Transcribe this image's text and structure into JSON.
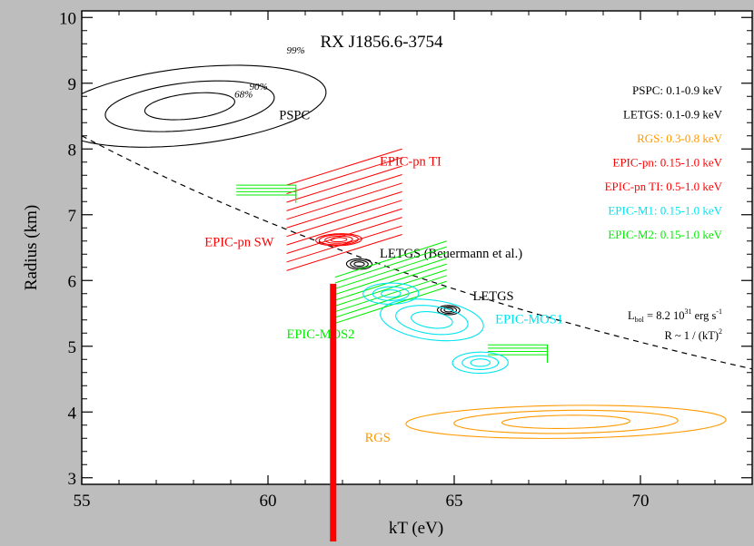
{
  "chart_data": {
    "type": "scatter",
    "title": "RX J1856.6-3754",
    "xlabel": "kT (eV)",
    "ylabel": "Radius (km)",
    "xlim": [
      55,
      73
    ],
    "ylim": [
      2.9,
      10.1
    ],
    "x_ticks": [
      55,
      60,
      65,
      70
    ],
    "y_ticks": [
      3,
      4,
      5,
      6,
      7,
      8,
      9,
      10
    ],
    "x_tick_labels": [
      "55",
      "60",
      "65",
      "70"
    ],
    "y_tick_labels": [
      "3",
      "4",
      "5",
      "6",
      "7",
      "8",
      "9",
      "10"
    ],
    "grid": false,
    "legend_position": "top-right",
    "legend": [
      {
        "label": "PSPC: 0.1-0.9 keV",
        "color": "#000000"
      },
      {
        "label": "LETGS: 0.1-0.9 keV",
        "color": "#000000"
      },
      {
        "label": "RGS: 0.3-0.8 keV",
        "color": "#ff9900"
      },
      {
        "label": "EPIC-pn: 0.15-1.0 keV",
        "color": "#ff0000"
      },
      {
        "label": "EPIC-pn TI: 0.5-1.0 keV",
        "color": "#ff0000"
      },
      {
        "label": "EPIC-M1: 0.15-1.0 keV",
        "color": "#00e5ee"
      },
      {
        "label": "EPIC-M2: 0.15-1.0 keV",
        "color": "#00ee00"
      }
    ],
    "relation": {
      "label_lbol": "L",
      "label_lbol_sub": "bol",
      "label_lbol_rest": " = 8.2 10",
      "label_lbol_exp": "31",
      "label_lbol_unit": " erg s",
      "label_lbol_unit_exp": "-1",
      "label_r": "R ~ 1 / (kT)",
      "label_r_exp": "2",
      "anchor": {
        "x": 55,
        "y": 8.2
      },
      "x_range": [
        55,
        73
      ],
      "style": "dashed",
      "color": "#000000"
    },
    "marker": {
      "x": 61.75,
      "y_top": 5.95,
      "color": "#ff0000"
    },
    "confidence_levels": [
      "68%",
      "90%",
      "99%"
    ],
    "contour_groups": [
      {
        "label": "PSPC",
        "color": "#000000",
        "label_x": 60.3,
        "label_y": 8.45,
        "center": [
          57.9,
          8.65
        ],
        "semi_axes": [
          3.9,
          0.55
        ],
        "angle_deg": 27,
        "rings": [
          0.33,
          0.62,
          1.0
        ],
        "ring_labels": [
          "68%",
          "90%",
          "99%"
        ]
      },
      {
        "label": "EPIC-pn TI",
        "color": "#ff0000",
        "label_x": 63.0,
        "label_y": 7.75,
        "hatch": {
          "x": [
            60.5,
            63.6
          ],
          "y": [
            6.15,
            7.45
          ],
          "count": 11
        }
      },
      {
        "label": "EPIC-pn SW",
        "color": "#ff0000",
        "label_x": 58.3,
        "label_y": 6.52,
        "center": [
          61.9,
          6.62
        ],
        "semi_axes": [
          0.62,
          0.09
        ],
        "angle_deg": 8,
        "rings": [
          0.35,
          0.6,
          0.85,
          1.0
        ]
      },
      {
        "label": "LETGS (Beuermann et al.)",
        "color": "#000000",
        "label_x": 63.0,
        "label_y": 6.35,
        "center": [
          62.45,
          6.25
        ],
        "semi_axes": [
          0.34,
          0.08
        ],
        "angle_deg": 15,
        "rings": [
          0.4,
          0.7,
          1.0
        ]
      },
      {
        "label": "LETGS",
        "color": "#000000",
        "label_x": 65.5,
        "label_y": 5.7,
        "center": [
          64.85,
          5.55
        ],
        "semi_axes": [
          0.3,
          0.07
        ],
        "angle_deg": 15,
        "rings": [
          0.4,
          0.7,
          1.0
        ]
      },
      {
        "label": "EPIC-MOS1",
        "color": "#00e5ee",
        "label_x": 66.1,
        "label_y": 5.35,
        "center": [
          64.4,
          5.4
        ],
        "semi_axes": [
          1.2,
          0.35
        ],
        "angle_deg": 40,
        "rings": [
          0.4,
          0.7,
          1.0
        ]
      },
      {
        "label": "EPIC-MOS2",
        "color": "#00ee00",
        "label_x": 60.5,
        "label_y": 5.12,
        "hatch": {
          "x": [
            61.8,
            64.8
          ],
          "y": [
            5.35,
            6.05
          ],
          "count": 9
        }
      },
      {
        "label": "RGS",
        "color": "#ff9900",
        "label_x": 62.6,
        "label_y": 3.55,
        "center": [
          68.0,
          3.85
        ],
        "semi_axes": [
          4.3,
          0.25
        ],
        "angle_deg": 2,
        "rings": [
          0.4,
          0.7,
          1.0
        ]
      }
    ]
  }
}
